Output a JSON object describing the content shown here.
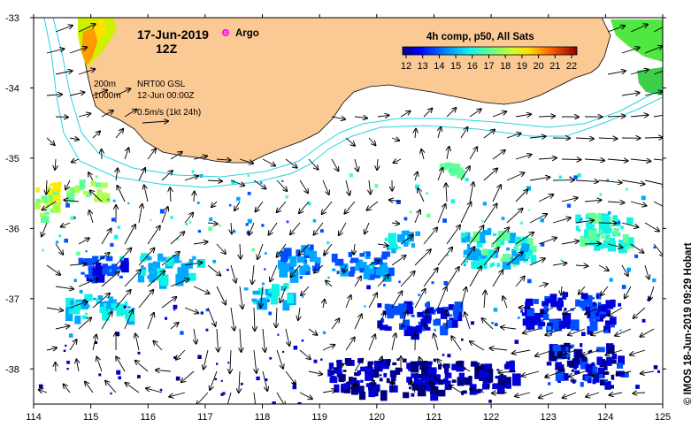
{
  "header": {
    "date": "17-Jun-2019",
    "hour": "12Z",
    "argo_label": "Argo"
  },
  "legend": {
    "title": "4h comp, p50, All Sats",
    "ticks": [
      "12",
      "13",
      "14",
      "15",
      "16",
      "17",
      "18",
      "19",
      "20",
      "21",
      "22"
    ],
    "colors": [
      "#00007f",
      "#0000d8",
      "#0050ff",
      "#00a8ff",
      "#10f4e8",
      "#60ff98",
      "#b0ff48",
      "#ffea00",
      "#ff9400",
      "#ff3c00",
      "#c00000",
      "#800000"
    ]
  },
  "info": {
    "depth_200": "200m",
    "depth_1000": "1000m",
    "source": "NRT00 GSL",
    "valid_time": "12-Jun 00:00Z",
    "scale": "0.5m/s (1kt 24h)"
  },
  "axes": {
    "x_ticks": [
      "114",
      "115",
      "116",
      "117",
      "118",
      "119",
      "120",
      "121",
      "122",
      "123",
      "124",
      "125"
    ],
    "y_ticks": [
      "-33",
      "-34",
      "-35",
      "-36",
      "-37",
      "-38"
    ],
    "xlim": [
      114,
      125
    ],
    "ylim": [
      -38.5,
      -33
    ]
  },
  "credit": "© IMOS 18-Jun-2019 09:29 Hobart",
  "colors": {
    "land": "#fbc994",
    "contour": "#26d5e3",
    "argo": "#ff00ff"
  }
}
